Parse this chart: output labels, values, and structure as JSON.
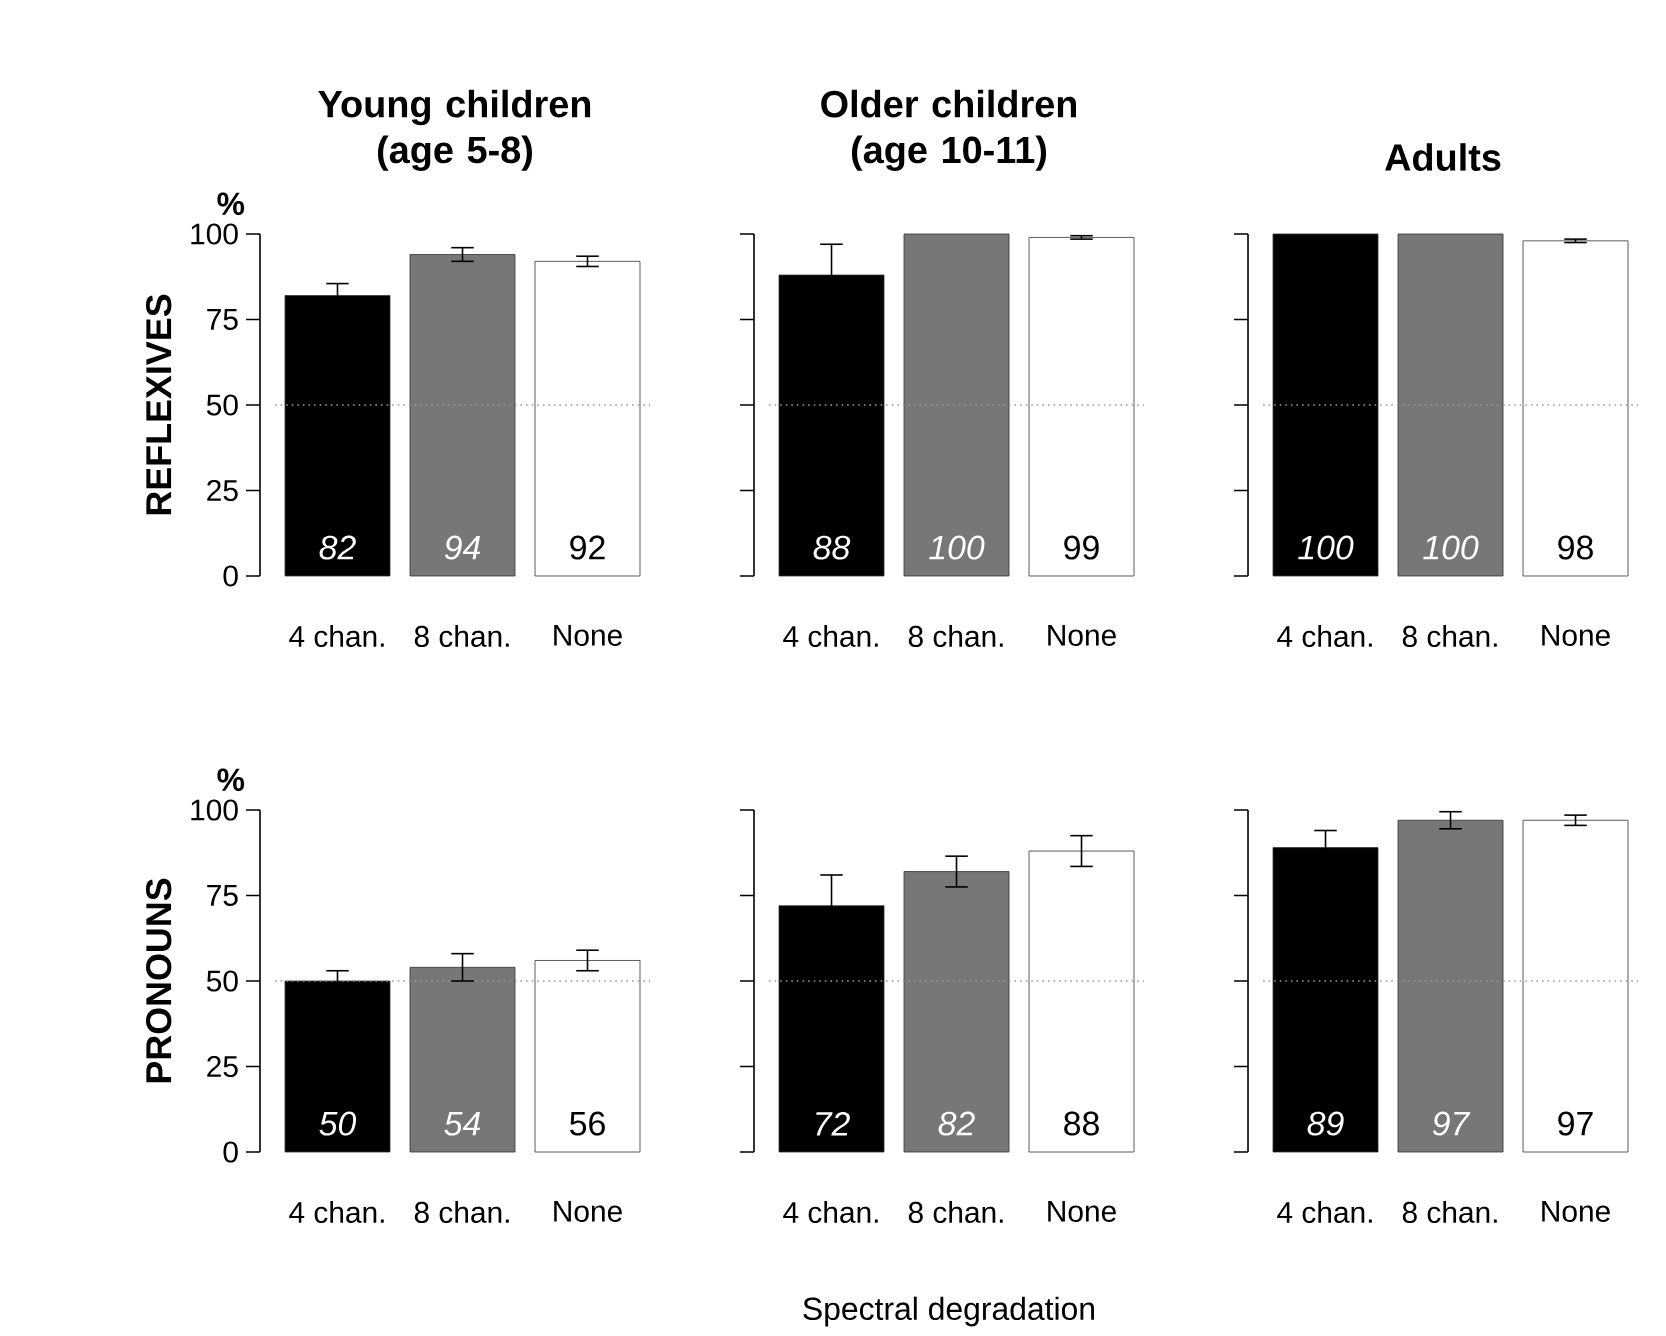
{
  "chart_data": [
    {
      "type": "bar",
      "title": "Young children (age 5-8)",
      "ylabel": "REFLEXIVES",
      "annotations": [
        "%"
      ],
      "categories": [
        "4 chan.",
        "8 chan.",
        "None"
      ],
      "values": [
        82,
        94,
        92
      ],
      "colors": [
        "#000000",
        "#777777",
        "#ffffff"
      ],
      "errors": [
        3.5,
        2,
        1.5
      ],
      "data_labels": true,
      "ylim": [
        0,
        100
      ],
      "yticks": [
        0,
        25,
        50,
        75,
        100
      ],
      "ref_lines": [
        {
          "axis": "y",
          "value": 50,
          "line_style": "dotted",
          "color": "#999999"
        }
      ]
    },
    {
      "type": "bar",
      "title": "Older children (age 10-11)",
      "categories": [
        "4 chan.",
        "8 chan.",
        "None"
      ],
      "values": [
        88,
        100,
        99
      ],
      "colors": [
        "#000000",
        "#777777",
        "#ffffff"
      ],
      "errors": [
        9,
        null,
        0.5
      ],
      "data_labels": true,
      "ylim": [
        0,
        100
      ],
      "yticks": [
        0,
        25,
        50,
        75,
        100
      ],
      "tick_labels": "x",
      "ref_lines": [
        {
          "axis": "y",
          "value": 50,
          "line_style": "dotted",
          "color": "#999999"
        }
      ]
    },
    {
      "type": "bar",
      "title": "Adults",
      "categories": [
        "4 chan.",
        "8 chan.",
        "None"
      ],
      "values": [
        100,
        100,
        98
      ],
      "colors": [
        "#000000",
        "#777777",
        "#ffffff"
      ],
      "errors": [
        null,
        null,
        0.5
      ],
      "data_labels": true,
      "ylim": [
        0,
        100
      ],
      "yticks": [
        0,
        25,
        50,
        75,
        100
      ],
      "tick_labels": "x",
      "ref_lines": [
        {
          "axis": "y",
          "value": 50,
          "line_style": "dotted",
          "color": "#999999"
        }
      ]
    },
    {
      "type": "bar",
      "ylabel": "PRONOUNS",
      "annotations": [
        "%"
      ],
      "categories": [
        "4 chan.",
        "8 chan.",
        "None"
      ],
      "values": [
        50,
        54,
        56
      ],
      "colors": [
        "#000000",
        "#777777",
        "#ffffff"
      ],
      "errors": [
        3,
        4,
        3
      ],
      "data_labels": true,
      "ylim": [
        0,
        100
      ],
      "yticks": [
        0,
        25,
        50,
        75,
        100
      ],
      "ref_lines": [
        {
          "axis": "y",
          "value": 50,
          "line_style": "dotted",
          "color": "#999999"
        }
      ]
    },
    {
      "type": "bar",
      "xlabel": "Spectral degradation",
      "categories": [
        "4 chan.",
        "8 chan.",
        "None"
      ],
      "values": [
        72,
        82,
        88
      ],
      "colors": [
        "#000000",
        "#777777",
        "#ffffff"
      ],
      "errors": [
        9,
        4.5,
        4.5
      ],
      "data_labels": true,
      "ylim": [
        0,
        100
      ],
      "yticks": [
        0,
        25,
        50,
        75,
        100
      ],
      "tick_labels": "x",
      "ref_lines": [
        {
          "axis": "y",
          "value": 50,
          "line_style": "dotted",
          "color": "#999999"
        }
      ]
    },
    {
      "type": "bar",
      "categories": [
        "4 chan.",
        "8 chan.",
        "None"
      ],
      "values": [
        89,
        97,
        97
      ],
      "colors": [
        "#000000",
        "#777777",
        "#ffffff"
      ],
      "errors": [
        5,
        2.5,
        1.5
      ],
      "data_labels": true,
      "ylim": [
        0,
        100
      ],
      "yticks": [
        0,
        25,
        50,
        75,
        100
      ],
      "tick_labels": "x",
      "ref_lines": [
        {
          "axis": "y",
          "value": 50,
          "line_style": "dotted",
          "color": "#999999"
        }
      ]
    }
  ]
}
